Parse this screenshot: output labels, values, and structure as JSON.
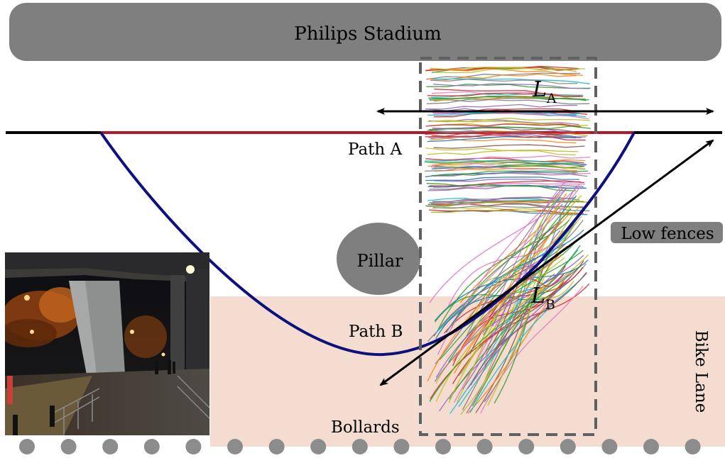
{
  "stadium": {
    "label": "Philips Stadium"
  },
  "pillar": {
    "label": "Pillar"
  },
  "fences": {
    "label": "Low fences"
  },
  "bike_lane": {
    "label": "Bike Lane"
  },
  "bollards": {
    "label": "Bollards",
    "count": 17
  },
  "path_a": {
    "label": "Path A"
  },
  "path_b": {
    "label": "Path B"
  },
  "arrow_a": {
    "symbol": "L",
    "subscript": "A"
  },
  "arrow_b": {
    "symbol": "L",
    "subscript": "B"
  },
  "colors": {
    "stadium": "#7f7f7f",
    "pillar": "#7f7f7f",
    "fence_box": "#808080",
    "bike_lane": "#f4ddd0",
    "bollard": "#8c8c8c",
    "path_a": "#b2182b",
    "path_b": "#0c117e",
    "arrows": "#000000",
    "roi_box": "#606060"
  },
  "trajectories": {
    "group_a_count": 90,
    "group_b_count": 70
  }
}
